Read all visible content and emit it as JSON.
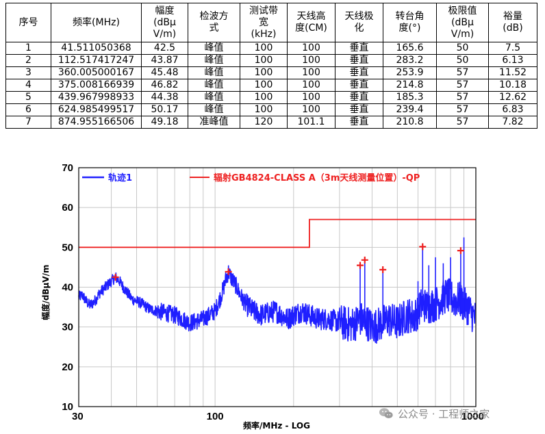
{
  "table": {
    "headers": [
      "序号",
      "频率(MHz)",
      "幅度\n(dBμ\nV/m)",
      "检波方\n式",
      "测试带\n宽\n(kHz)",
      "天线高\n度(CM)",
      "天线极\n化",
      "转台角\n度(°)",
      "极限值\n(dBμ\nV/m)",
      "裕量\n(dB)"
    ],
    "rows": [
      [
        "1",
        "41.511050368",
        "42.5",
        "峰值",
        "100",
        "100",
        "垂直",
        "165.6",
        "50",
        "7.5"
      ],
      [
        "2",
        "112.517417247",
        "43.87",
        "峰值",
        "100",
        "100",
        "垂直",
        "283.2",
        "50",
        "6.13"
      ],
      [
        "3",
        "360.005000167",
        "45.48",
        "峰值",
        "100",
        "100",
        "垂直",
        "253.9",
        "57",
        "11.52"
      ],
      [
        "4",
        "375.008166939",
        "46.82",
        "峰值",
        "100",
        "100",
        "垂直",
        "214.8",
        "57",
        "10.18"
      ],
      [
        "5",
        "439.967998933",
        "44.38",
        "峰值",
        "100",
        "100",
        "垂直",
        "185.3",
        "57",
        "12.62"
      ],
      [
        "6",
        "624.985499517",
        "50.17",
        "峰值",
        "100",
        "100",
        "垂直",
        "239.4",
        "57",
        "6.83"
      ],
      [
        "7",
        "874.955166506",
        "49.18",
        "准峰值",
        "120",
        "101.1",
        "垂直",
        "210.8",
        "57",
        "7.82"
      ]
    ]
  },
  "chart_data": {
    "type": "line",
    "xscale": "log",
    "xlim": [
      30,
      1000
    ],
    "ylim": [
      10,
      70
    ],
    "xticks": [
      30,
      100,
      1000
    ],
    "yticks": [
      10,
      20,
      30,
      40,
      50,
      60,
      70
    ],
    "xlabel": "频率/MHz - LOG",
    "ylabel": "幅度/dBμV/m",
    "grid": true,
    "legend_position": "top",
    "colors": {
      "trace": "#1f1fff",
      "limit": "#ee2020",
      "marker": "#ee2020",
      "grid": "#c8c8c8"
    },
    "series": [
      {
        "name": "轨迹1",
        "x": [
          30,
          31,
          32,
          33,
          34,
          35,
          36,
          38,
          40,
          41.5,
          43,
          45,
          48,
          52,
          56,
          60,
          65,
          70,
          75,
          80,
          85,
          90,
          95,
          100,
          105,
          108,
          110,
          112.5,
          115,
          120,
          125,
          130,
          140,
          150,
          160,
          170,
          180,
          190,
          200,
          215,
          230,
          250,
          270,
          290,
          310,
          330,
          345,
          360,
          375,
          385,
          400,
          420,
          440,
          460,
          480,
          500,
          520,
          550,
          580,
          600,
          625,
          650,
          680,
          710,
          740,
          770,
          800,
          830,
          860,
          875,
          900,
          930,
          960,
          1000
        ],
        "y": [
          37.5,
          38,
          36.5,
          35.5,
          36,
          37,
          38.5,
          40,
          41.5,
          42.5,
          41.5,
          39.5,
          37,
          36,
          34.5,
          34,
          33.5,
          33,
          32,
          31,
          31.5,
          32,
          33,
          34,
          37.5,
          40,
          42,
          43.9,
          42.5,
          40.5,
          38,
          36,
          34,
          33,
          33.5,
          34,
          33,
          32,
          33,
          34,
          33,
          32,
          32,
          31.5,
          31,
          30.5,
          31,
          32,
          31.5,
          31,
          30,
          30.5,
          31,
          32,
          31.5,
          31,
          32,
          33,
          32.5,
          34,
          36,
          35,
          35.5,
          36,
          37,
          38,
          37.5,
          36.5,
          37,
          36.5,
          35.5,
          35,
          33.5,
          32
        ]
      },
      {
        "name": "辐射GB4824-CLASS A（3m天线测量位置）-QP",
        "x": [
          30,
          230,
          230,
          1000
        ],
        "y": [
          50,
          50,
          57,
          57
        ]
      }
    ],
    "peaks": [
      {
        "x": 41.511050368,
        "y": 42.5
      },
      {
        "x": 112.517417247,
        "y": 43.87
      },
      {
        "x": 360.005000167,
        "y": 45.48
      },
      {
        "x": 375.008166939,
        "y": 46.82
      },
      {
        "x": 439.967998933,
        "y": 44.38
      },
      {
        "x": 624.985499517,
        "y": 50.17
      },
      {
        "x": 874.955166506,
        "y": 49.18
      }
    ],
    "spikes": [
      {
        "x": 360,
        "y": 45.5
      },
      {
        "x": 375,
        "y": 46.8
      },
      {
        "x": 440,
        "y": 44.4
      },
      {
        "x": 600,
        "y": 41.5
      },
      {
        "x": 625,
        "y": 50.2
      },
      {
        "x": 660,
        "y": 45.5
      },
      {
        "x": 700,
        "y": 47.5
      },
      {
        "x": 750,
        "y": 46
      },
      {
        "x": 800,
        "y": 47.5
      },
      {
        "x": 875,
        "y": 49.2
      },
      {
        "x": 900,
        "y": 52.5
      }
    ]
  },
  "watermark": {
    "text": "公众号 · 工程师之家"
  }
}
